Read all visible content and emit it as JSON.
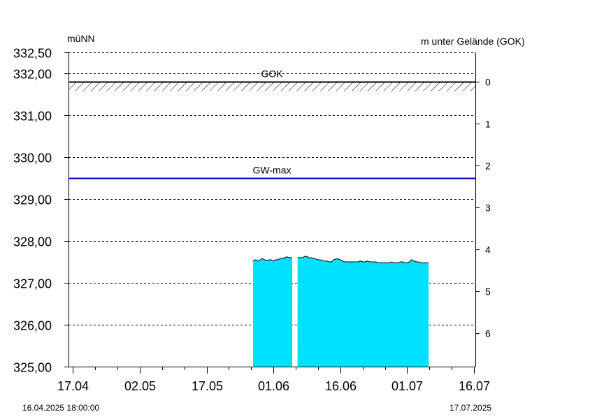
{
  "chart_data": {
    "type": "area",
    "left_axis_label": "müNN",
    "right_axis_label": "m unter Gelände (GOK)",
    "left_ticks": [
      "325,00",
      "326,00",
      "327,00",
      "328,00",
      "329,00",
      "330,00",
      "331,00",
      "332,00",
      "332,50"
    ],
    "left_tick_values": [
      325,
      326,
      327,
      328,
      329,
      330,
      331,
      332,
      332.5
    ],
    "right_ticks": [
      "0",
      "1",
      "2",
      "3",
      "4",
      "5",
      "6"
    ],
    "right_tick_values": [
      0,
      1,
      2,
      3,
      4,
      5,
      6
    ],
    "x_ticks": [
      "17.04",
      "02.05",
      "17.05",
      "01.06",
      "16.06",
      "01.07",
      "16.07"
    ],
    "x_tick_days": [
      1,
      16,
      31,
      46,
      61,
      76,
      91
    ],
    "x_range_days": [
      0,
      91.3
    ],
    "ylim": [
      325,
      332.5
    ],
    "date_from": "16.04.2025 18:00:00",
    "date_to": "17.07.2025",
    "reference_lines": [
      {
        "name": "GOK",
        "value": 331.8,
        "color": "#000000",
        "hatched": true
      },
      {
        "name": "GW-max",
        "value": 329.5,
        "color": "#0000c8"
      }
    ],
    "series": [
      {
        "color": "#00e0ff",
        "segments": [
          [
            [
              41.4,
              327.52
            ],
            [
              42,
              327.55
            ],
            [
              42.5,
              327.52
            ],
            [
              43,
              327.55
            ],
            [
              43.5,
              327.58
            ],
            [
              44,
              327.55
            ],
            [
              44.5,
              327.53
            ],
            [
              45,
              327.55
            ],
            [
              45.5,
              327.55
            ],
            [
              46,
              327.52
            ],
            [
              46.5,
              327.55
            ],
            [
              47,
              327.55
            ],
            [
              47.5,
              327.58
            ],
            [
              48,
              327.58
            ],
            [
              48.5,
              327.6
            ],
            [
              49,
              327.62
            ],
            [
              49.5,
              327.6
            ],
            [
              50.2,
              327.6
            ]
          ],
          [
            [
              51.4,
              327.6
            ],
            [
              52,
              327.6
            ],
            [
              52.5,
              327.6
            ],
            [
              53,
              327.63
            ],
            [
              53.5,
              327.63
            ],
            [
              54,
              327.6
            ],
            [
              54.5,
              327.6
            ],
            [
              55,
              327.58
            ],
            [
              55.5,
              327.57
            ],
            [
              56,
              327.55
            ],
            [
              56.5,
              327.55
            ],
            [
              57,
              327.53
            ],
            [
              57.5,
              327.52
            ],
            [
              58,
              327.52
            ],
            [
              58.5,
              327.5
            ],
            [
              59,
              327.5
            ],
            [
              59.5,
              327.55
            ],
            [
              60,
              327.57
            ],
            [
              60.5,
              327.57
            ],
            [
              61,
              327.55
            ],
            [
              61.5,
              327.52
            ],
            [
              62,
              327.5
            ],
            [
              62.5,
              327.5
            ],
            [
              63,
              327.5
            ],
            [
              63.5,
              327.5
            ],
            [
              64,
              327.5
            ],
            [
              64.5,
              327.5
            ],
            [
              65,
              327.5
            ],
            [
              65.5,
              327.52
            ],
            [
              66,
              327.5
            ],
            [
              66.5,
              327.5
            ],
            [
              67,
              327.52
            ],
            [
              67.5,
              327.5
            ],
            [
              68,
              327.5
            ],
            [
              68.5,
              327.5
            ],
            [
              69,
              327.5
            ],
            [
              69.5,
              327.48
            ],
            [
              70,
              327.48
            ],
            [
              70.5,
              327.48
            ],
            [
              71,
              327.48
            ],
            [
              71.5,
              327.48
            ],
            [
              72,
              327.48
            ],
            [
              72.5,
              327.5
            ],
            [
              73,
              327.48
            ],
            [
              73.5,
              327.48
            ],
            [
              74,
              327.48
            ],
            [
              74.5,
              327.5
            ],
            [
              75,
              327.5
            ],
            [
              75.5,
              327.48
            ],
            [
              76,
              327.48
            ],
            [
              76.5,
              327.5
            ],
            [
              77,
              327.55
            ],
            [
              77.5,
              327.52
            ],
            [
              78,
              327.5
            ],
            [
              78.5,
              327.5
            ],
            [
              79,
              327.48
            ],
            [
              79.5,
              327.48
            ],
            [
              80,
              327.48
            ],
            [
              80.8,
              327.48
            ]
          ]
        ]
      }
    ]
  }
}
